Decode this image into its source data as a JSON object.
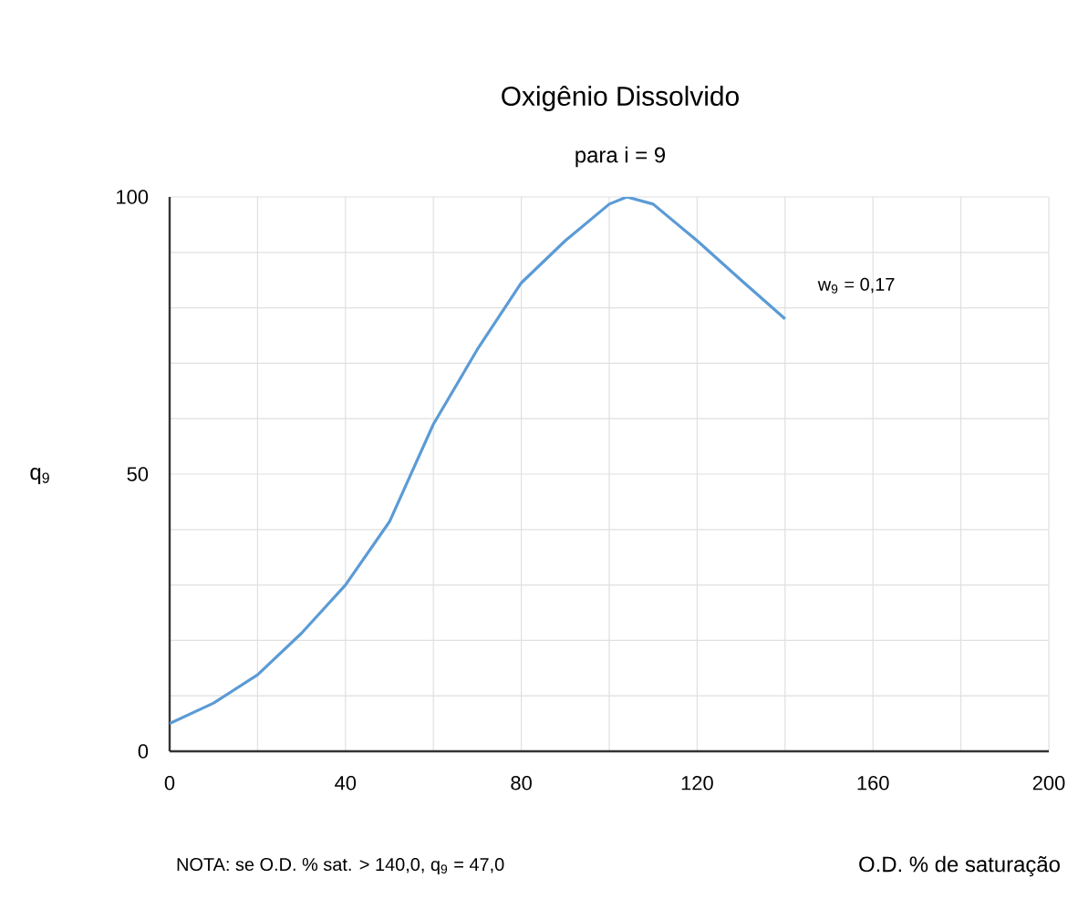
{
  "chart_data": {
    "type": "line",
    "title": "Oxigênio Dissolvido",
    "subtitle": "para i = 9",
    "xlabel": "O.D. % de saturação",
    "ylabel": "q$_{9}$",
    "x": [
      0,
      10,
      20,
      30,
      40,
      50,
      60,
      70,
      80,
      90,
      100,
      104,
      110,
      120,
      130,
      140
    ],
    "series": [
      {
        "color": "#5b9bd5",
        "values": [
          5,
          8.7,
          13.8,
          21.3,
          30,
          41.4,
          59,
          72.5,
          84.5,
          92.1,
          98.7,
          100,
          98.7,
          92.1,
          85,
          78
        ]
      }
    ],
    "xlim": [
      0,
      200
    ],
    "ylim": [
      0,
      100
    ],
    "xticks": [
      0,
      {
        "value": 20,
        "label": null
      },
      40,
      {
        "value": 60,
        "label": null
      },
      80,
      {
        "value": 100,
        "label": null
      },
      120,
      {
        "value": 140,
        "label": null
      },
      160,
      {
        "value": 180,
        "label": null
      },
      200
    ],
    "yticks": [
      0,
      {
        "value": 10,
        "label": null
      },
      {
        "value": 20,
        "label": null
      },
      {
        "value": 30,
        "label": null
      },
      {
        "value": 40,
        "label": null
      },
      50,
      {
        "value": 60,
        "label": null
      },
      {
        "value": 70,
        "label": null
      },
      {
        "value": 80,
        "label": null
      },
      {
        "value": 90,
        "label": null
      },
      100
    ],
    "grid": true,
    "marker": "none",
    "line_style": "solid",
    "annotations": [
      "w$_{9}$ = 0,17",
      "NOTA: se O.D. % sat. > 140,0, q$_{9}$ = 47,0"
    ]
  }
}
